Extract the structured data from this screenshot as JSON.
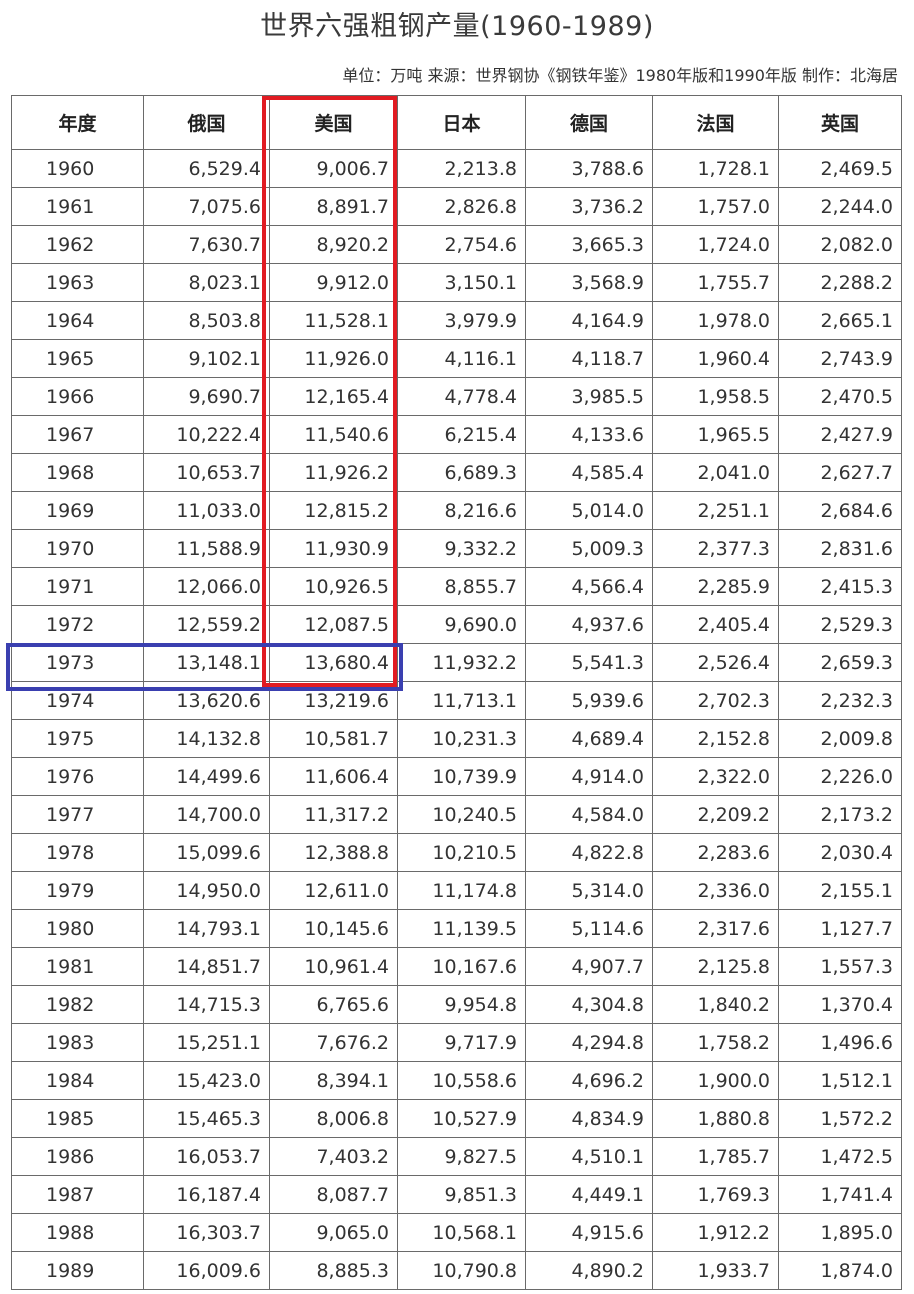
{
  "chart_data": {
    "type": "table",
    "title": "世界六强粗钢产量(1960-1989)",
    "subtitle": "单位：万吨 来源：世界钢协《钢铁年鉴》1980年版和1990年版 制作：北海居",
    "columns": [
      "年度",
      "俄国",
      "美国",
      "日本",
      "德国",
      "法国",
      "英国"
    ],
    "rows": [
      [
        "1960",
        "6,529.4",
        "9,006.7",
        "2,213.8",
        "3,788.6",
        "1,728.1",
        "2,469.5"
      ],
      [
        "1961",
        "7,075.6",
        "8,891.7",
        "2,826.8",
        "3,736.2",
        "1,757.0",
        "2,244.0"
      ],
      [
        "1962",
        "7,630.7",
        "8,920.2",
        "2,754.6",
        "3,665.3",
        "1,724.0",
        "2,082.0"
      ],
      [
        "1963",
        "8,023.1",
        "9,912.0",
        "3,150.1",
        "3,568.9",
        "1,755.7",
        "2,288.2"
      ],
      [
        "1964",
        "8,503.8",
        "11,528.1",
        "3,979.9",
        "4,164.9",
        "1,978.0",
        "2,665.1"
      ],
      [
        "1965",
        "9,102.1",
        "11,926.0",
        "4,116.1",
        "4,118.7",
        "1,960.4",
        "2,743.9"
      ],
      [
        "1966",
        "9,690.7",
        "12,165.4",
        "4,778.4",
        "3,985.5",
        "1,958.5",
        "2,470.5"
      ],
      [
        "1967",
        "10,222.4",
        "11,540.6",
        "6,215.4",
        "4,133.6",
        "1,965.5",
        "2,427.9"
      ],
      [
        "1968",
        "10,653.7",
        "11,926.2",
        "6,689.3",
        "4,585.4",
        "2,041.0",
        "2,627.7"
      ],
      [
        "1969",
        "11,033.0",
        "12,815.2",
        "8,216.6",
        "5,014.0",
        "2,251.1",
        "2,684.6"
      ],
      [
        "1970",
        "11,588.9",
        "11,930.9",
        "9,332.2",
        "5,009.3",
        "2,377.3",
        "2,831.6"
      ],
      [
        "1971",
        "12,066.0",
        "10,926.5",
        "8,855.7",
        "4,566.4",
        "2,285.9",
        "2,415.3"
      ],
      [
        "1972",
        "12,559.2",
        "12,087.5",
        "9,690.0",
        "4,937.6",
        "2,405.4",
        "2,529.3"
      ],
      [
        "1973",
        "13,148.1",
        "13,680.4",
        "11,932.2",
        "5,541.3",
        "2,526.4",
        "2,659.3"
      ],
      [
        "1974",
        "13,620.6",
        "13,219.6",
        "11,713.1",
        "5,939.6",
        "2,702.3",
        "2,232.3"
      ],
      [
        "1975",
        "14,132.8",
        "10,581.7",
        "10,231.3",
        "4,689.4",
        "2,152.8",
        "2,009.8"
      ],
      [
        "1976",
        "14,499.6",
        "11,606.4",
        "10,739.9",
        "4,914.0",
        "2,322.0",
        "2,226.0"
      ],
      [
        "1977",
        "14,700.0",
        "11,317.2",
        "10,240.5",
        "4,584.0",
        "2,209.2",
        "2,173.2"
      ],
      [
        "1978",
        "15,099.6",
        "12,388.8",
        "10,210.5",
        "4,822.8",
        "2,283.6",
        "2,030.4"
      ],
      [
        "1979",
        "14,950.0",
        "12,611.0",
        "11,174.8",
        "5,314.0",
        "2,336.0",
        "2,155.1"
      ],
      [
        "1980",
        "14,793.1",
        "10,145.6",
        "11,139.5",
        "5,114.6",
        "2,317.6",
        "1,127.7"
      ],
      [
        "1981",
        "14,851.7",
        "10,961.4",
        "10,167.6",
        "4,907.7",
        "2,125.8",
        "1,557.3"
      ],
      [
        "1982",
        "14,715.3",
        "6,765.6",
        "9,954.8",
        "4,304.8",
        "1,840.2",
        "1,370.4"
      ],
      [
        "1983",
        "15,251.1",
        "7,676.2",
        "9,717.9",
        "4,294.8",
        "1,758.2",
        "1,496.6"
      ],
      [
        "1984",
        "15,423.0",
        "8,394.1",
        "10,558.6",
        "4,696.2",
        "1,900.0",
        "1,512.1"
      ],
      [
        "1985",
        "15,465.3",
        "8,006.8",
        "10,527.9",
        "4,834.9",
        "1,880.8",
        "1,572.2"
      ],
      [
        "1986",
        "16,053.7",
        "7,403.2",
        "9,827.5",
        "4,510.1",
        "1,785.7",
        "1,472.5"
      ],
      [
        "1987",
        "16,187.4",
        "8,087.7",
        "9,851.3",
        "4,449.1",
        "1,769.3",
        "1,741.4"
      ],
      [
        "1988",
        "16,303.7",
        "9,065.0",
        "10,568.1",
        "4,915.6",
        "1,912.2",
        "1,895.0"
      ],
      [
        "1989",
        "16,009.6",
        "8,885.3",
        "10,790.8",
        "4,890.2",
        "1,933.7",
        "1,874.0"
      ]
    ],
    "highlights": {
      "column": "美国",
      "column_color": "#e11b22",
      "row": "1973",
      "row_color": "#3a3fb0"
    }
  }
}
